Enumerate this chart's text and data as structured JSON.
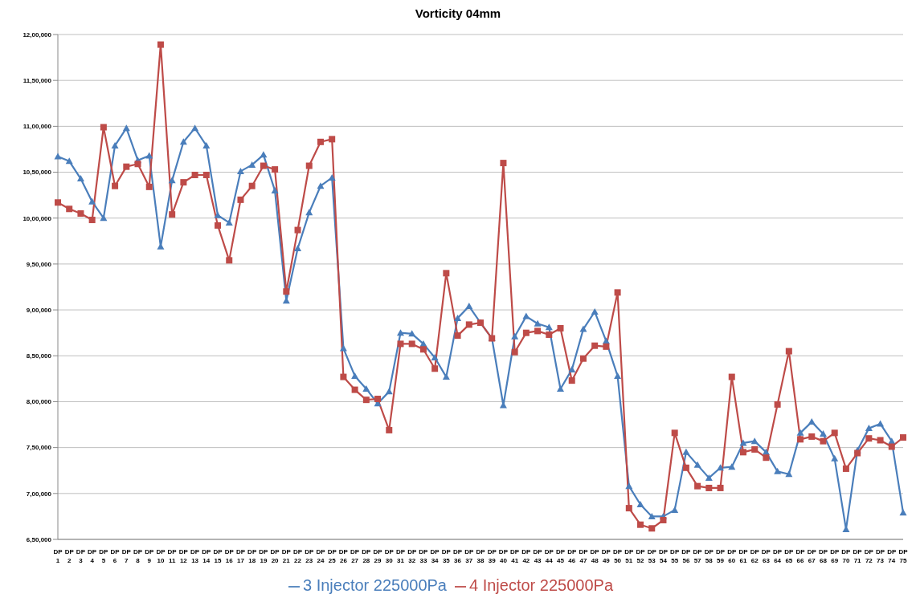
{
  "chart_data": {
    "type": "line",
    "title": "Vorticity 04mm",
    "categories": [
      "DP 1",
      "DP 2",
      "DP 3",
      "DP 4",
      "DP 5",
      "DP 6",
      "DP 7",
      "DP 8",
      "DP 9",
      "DP 10",
      "DP 11",
      "DP 12",
      "DP 13",
      "DP 14",
      "DP 15",
      "DP 16",
      "DP 17",
      "DP 18",
      "DP 19",
      "DP 20",
      "DP 21",
      "DP 22",
      "DP 23",
      "DP 24",
      "DP 25",
      "DP 26",
      "DP 27",
      "DP 28",
      "DP 29",
      "DP 30",
      "DP 31",
      "DP 32",
      "DP 33",
      "DP 34",
      "DP 35",
      "DP 36",
      "DP 37",
      "DP 38",
      "DP 39",
      "DP 40",
      "DP 41",
      "DP 42",
      "DP 43",
      "DP 44",
      "DP 45",
      "DP 46",
      "DP 47",
      "DP 48",
      "DP 49",
      "DP 50",
      "DP 51",
      "DP 52",
      "DP 53",
      "DP 54",
      "DP 55",
      "DP 56",
      "DP 57",
      "DP 58",
      "DP 59",
      "DP 60",
      "DP 61",
      "DP 62",
      "DP 63",
      "DP 64",
      "DP 65",
      "DP 66",
      "DP 67",
      "DP 68",
      "DP 69",
      "DP 70",
      "DP 71",
      "DP 72",
      "DP 73",
      "DP 74",
      "DP 75"
    ],
    "series": [
      {
        "name": "3 Injector 225000Pa",
        "color": "#4a7ebb",
        "marker": "triangle",
        "values": [
          1067000,
          1062000,
          1043000,
          1018000,
          1000000,
          1079000,
          1098000,
          1063000,
          1068000,
          969000,
          1041000,
          1083000,
          1098000,
          1079000,
          1003000,
          995000,
          1051000,
          1058000,
          1069000,
          1030000,
          910000,
          967000,
          1006000,
          1035000,
          1044000,
          858000,
          828000,
          814000,
          798000,
          811000,
          875000,
          874000,
          863000,
          848000,
          827000,
          891000,
          904000,
          886000,
          869000,
          796000,
          871000,
          893000,
          885000,
          881000,
          814000,
          835000,
          879000,
          898000,
          866000,
          828000,
          708000,
          688000,
          675000,
          675000,
          682000,
          745000,
          731000,
          717000,
          728000,
          729000,
          755000,
          757000,
          745000,
          724000,
          721000,
          766000,
          778000,
          765000,
          738000,
          661000,
          747000,
          771000,
          776000,
          757000,
          679000
        ]
      },
      {
        "name": "4 Injector 225000Pa",
        "color": "#be4b48",
        "marker": "square",
        "values": [
          1017000,
          1010000,
          1005000,
          998000,
          1099000,
          1035000,
          1056000,
          1059000,
          1034000,
          1189000,
          1004000,
          1039000,
          1047000,
          1047000,
          992000,
          954000,
          1020000,
          1035000,
          1057000,
          1053000,
          920000,
          987000,
          1057000,
          1083000,
          1086000,
          827000,
          813000,
          802000,
          803000,
          769000,
          863000,
          863000,
          857000,
          836000,
          940000,
          872000,
          884000,
          886000,
          869000,
          1060000,
          854000,
          875000,
          877000,
          873000,
          880000,
          823000,
          847000,
          861000,
          860000,
          919000,
          684000,
          666000,
          662000,
          671000,
          766000,
          728000,
          708000,
          706000,
          706000,
          827000,
          745000,
          748000,
          739000,
          797000,
          855000,
          759000,
          762000,
          757000,
          766000,
          727000,
          744000,
          760000,
          758000,
          751000,
          761000
        ]
      }
    ],
    "ylim": [
      650000,
      1200000
    ],
    "yticks": [
      {
        "value": 650000,
        "label": "6,50,000"
      },
      {
        "value": 700000,
        "label": "7,00,000"
      },
      {
        "value": 750000,
        "label": "7,50,000"
      },
      {
        "value": 800000,
        "label": "8,00,000"
      },
      {
        "value": 850000,
        "label": "8,50,000"
      },
      {
        "value": 900000,
        "label": "9,00,000"
      },
      {
        "value": 950000,
        "label": "9,50,000"
      },
      {
        "value": 1000000,
        "label": "10,00,000"
      },
      {
        "value": 1050000,
        "label": "10,50,000"
      },
      {
        "value": 1100000,
        "label": "11,00,000"
      },
      {
        "value": 1150000,
        "label": "11,50,000"
      },
      {
        "value": 1200000,
        "label": "12,00,000"
      }
    ],
    "grid": "y",
    "legend": "bottom"
  }
}
